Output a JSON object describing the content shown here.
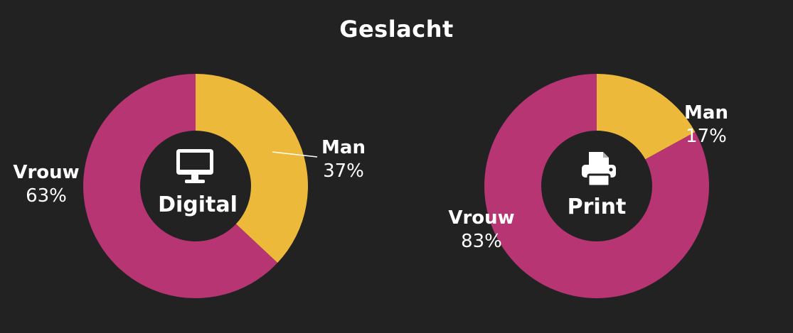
{
  "chart_data": {
    "type": "pie",
    "title": "Geslacht",
    "charts": [
      {
        "name": "Digital",
        "icon": "monitor-icon",
        "slices": [
          {
            "label": "Man",
            "value": 37,
            "display": "37%",
            "color": "#EDB93A"
          },
          {
            "label": "Vrouw",
            "value": 63,
            "display": "63%",
            "color": "#B63572"
          }
        ]
      },
      {
        "name": "Print",
        "icon": "printer-icon",
        "slices": [
          {
            "label": "Man",
            "value": 17,
            "display": "17%",
            "color": "#EDB93A"
          },
          {
            "label": "Vrouw",
            "value": 83,
            "display": "83%",
            "color": "#B63572"
          }
        ]
      }
    ]
  }
}
